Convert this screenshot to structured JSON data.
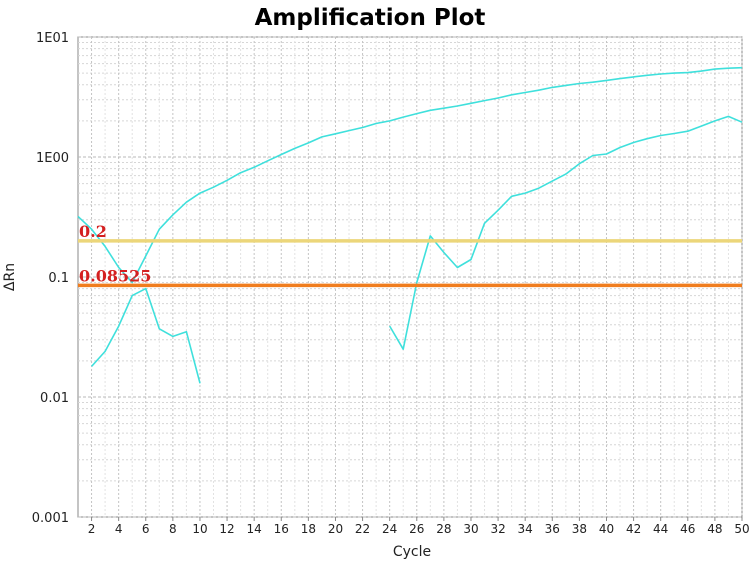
{
  "chart_data": {
    "type": "line",
    "title": "Amplification Plot",
    "xlabel": "Cycle",
    "ylabel": "ΔRn",
    "yscale": "log",
    "xlim": [
      1,
      50
    ],
    "ylim": [
      0.001,
      10
    ],
    "xticks": [
      2,
      4,
      6,
      8,
      10,
      12,
      14,
      16,
      18,
      20,
      22,
      24,
      26,
      28,
      30,
      32,
      34,
      36,
      38,
      40,
      42,
      44,
      46,
      48,
      50
    ],
    "yticks": [
      {
        "value": 0.001,
        "label": "0.001"
      },
      {
        "value": 0.01,
        "label": "0.01"
      },
      {
        "value": 0.1,
        "label": "0.1"
      },
      {
        "value": 1,
        "label": "1E00"
      },
      {
        "value": 10,
        "label": "1E01"
      }
    ],
    "grid": true,
    "series_color": "#3fe0dc",
    "series": [
      {
        "x": [
          1,
          2,
          3,
          4,
          5,
          6,
          7,
          8,
          9,
          10,
          11,
          12,
          13,
          14,
          15,
          16,
          17,
          18,
          19,
          20,
          21,
          22,
          23,
          24,
          25,
          26,
          27,
          28,
          29,
          30,
          31,
          32,
          33,
          34,
          35,
          36,
          37,
          38,
          39,
          40,
          41,
          42,
          43,
          44,
          45,
          46,
          47,
          48,
          49,
          50
        ],
        "y": [
          0.32,
          0.25,
          0.18,
          0.12,
          0.09,
          0.15,
          0.25,
          0.33,
          0.42,
          0.5,
          0.56,
          0.64,
          0.74,
          0.82,
          0.93,
          1.05,
          1.18,
          1.31,
          1.47,
          1.56,
          1.66,
          1.76,
          1.9,
          2.0,
          2.15,
          2.3,
          2.45,
          2.55,
          2.66,
          2.8,
          2.95,
          3.1,
          3.3,
          3.45,
          3.6,
          3.8,
          3.95,
          4.1,
          4.2,
          4.35,
          4.5,
          4.65,
          4.8,
          4.92,
          5.0,
          5.05,
          5.2,
          5.4,
          5.5,
          5.55
        ]
      },
      {
        "x": [
          2,
          3,
          4,
          5,
          6,
          7,
          8,
          9,
          10
        ],
        "y": [
          0.018,
          0.024,
          0.039,
          0.07,
          0.08,
          0.037,
          0.032,
          0.035,
          0.013
        ]
      },
      {
        "x": [
          24,
          25,
          26,
          27,
          28,
          29,
          30,
          31,
          32,
          33,
          34,
          35,
          36,
          37,
          38,
          39,
          40,
          41,
          42,
          43,
          44,
          45,
          46,
          47,
          48,
          49,
          50
        ],
        "y": [
          0.039,
          0.025,
          0.09,
          0.22,
          0.16,
          0.12,
          0.14,
          0.28,
          0.36,
          0.47,
          0.5,
          0.55,
          0.63,
          0.72,
          0.88,
          1.03,
          1.06,
          1.2,
          1.32,
          1.42,
          1.51,
          1.57,
          1.64,
          1.81,
          2.0,
          2.18,
          1.95
        ]
      }
    ],
    "thresholds": [
      {
        "value": 0.2,
        "label": "0.2",
        "color": "#ecd67a"
      },
      {
        "value": 0.08525,
        "label": "0.08525",
        "color": "#f07d1e"
      }
    ]
  }
}
